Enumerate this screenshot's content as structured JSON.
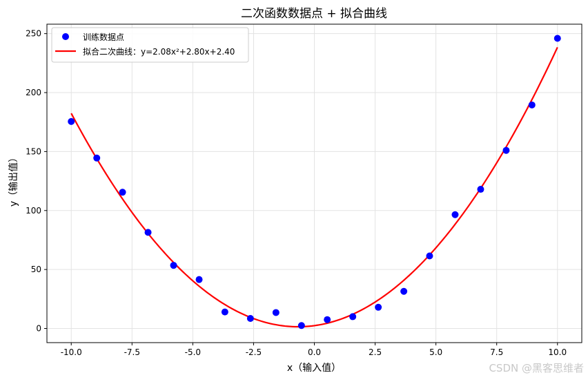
{
  "chart_data": {
    "type": "scatter",
    "title": "二次函数数据点 + 拟合曲线",
    "xlabel": "x（输入值）",
    "ylabel": "y（输出值）",
    "xlim": [
      -11,
      11
    ],
    "ylim": [
      -12,
      258
    ],
    "xticks": [
      -10.0,
      -7.5,
      -5.0,
      -2.5,
      0.0,
      2.5,
      5.0,
      7.5,
      10.0
    ],
    "xtick_labels": [
      "-10.0",
      "-7.5",
      "-5.0",
      "-2.5",
      "0.0",
      "2.5",
      "5.0",
      "7.5",
      "10.0"
    ],
    "yticks": [
      0,
      50,
      100,
      150,
      200,
      250
    ],
    "ytick_labels": [
      "0",
      "50",
      "100",
      "150",
      "200",
      "250"
    ],
    "grid": true,
    "legend_position": "top-left",
    "series": [
      {
        "name": "训练数据点",
        "kind": "scatter",
        "color": "#0000ff",
        "x": [
          -10.0,
          -8.95,
          -7.89,
          -6.84,
          -5.79,
          -4.74,
          -3.68,
          -2.63,
          -1.58,
          -0.53,
          0.53,
          1.58,
          2.63,
          3.68,
          4.74,
          5.79,
          6.84,
          7.89,
          8.95,
          10.0
        ],
        "y": [
          175.5,
          144.5,
          115.5,
          81.5,
          53.5,
          41.5,
          14.0,
          8.5,
          13.5,
          2.5,
          7.5,
          10.0,
          18.0,
          31.5,
          61.5,
          96.5,
          118.0,
          151.0,
          189.5,
          246.0
        ]
      },
      {
        "name": "拟合二次曲线：y=2.08x²+2.80x+2.40",
        "kind": "line",
        "color": "#ff0000",
        "equation": {
          "a": 2.08,
          "b": 2.8,
          "c": 2.4
        },
        "x_range": [
          -10.0,
          10.0
        ]
      }
    ]
  },
  "watermark": "CSDN @黑客思维者"
}
